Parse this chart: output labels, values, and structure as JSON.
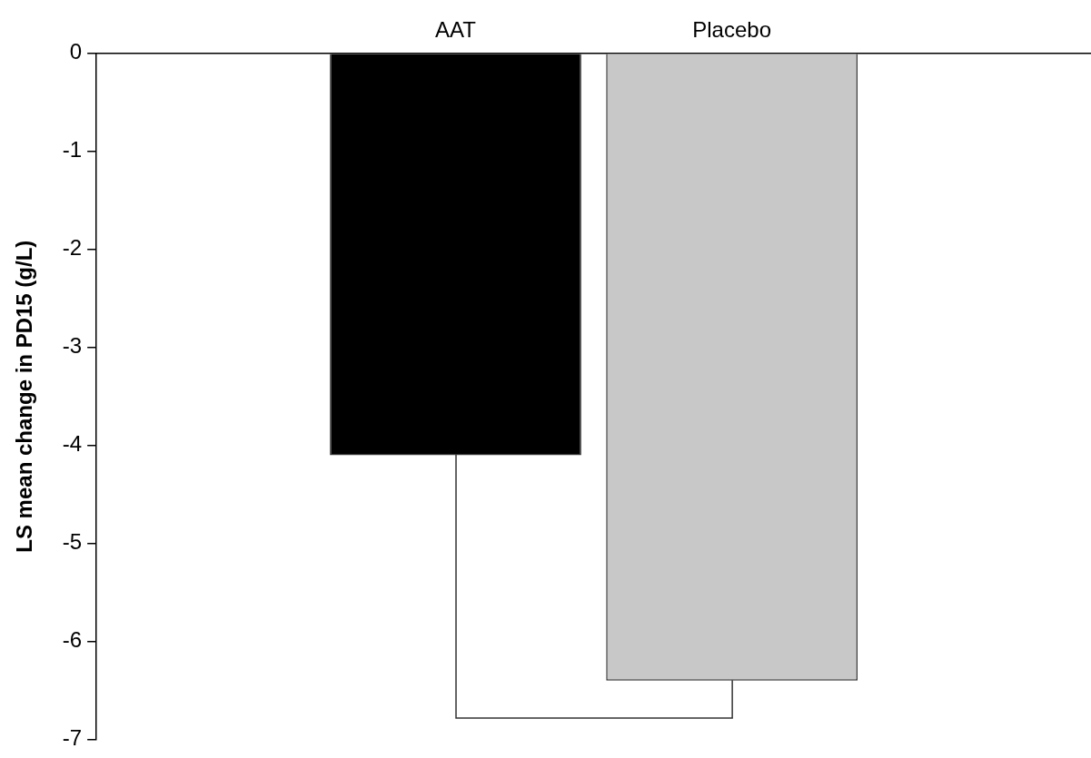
{
  "chart_data": {
    "type": "bar",
    "categories": [
      "AAT",
      "Placebo"
    ],
    "values": [
      -4.1,
      -6.4
    ],
    "colors": [
      "#000000",
      "#c8c8c8"
    ],
    "ylim": [
      -7,
      0
    ],
    "yticks": [
      0,
      -1,
      -2,
      -3,
      -4,
      -5,
      -6,
      -7
    ],
    "ylabel": "LS mean change in PD15 (g/L)"
  }
}
